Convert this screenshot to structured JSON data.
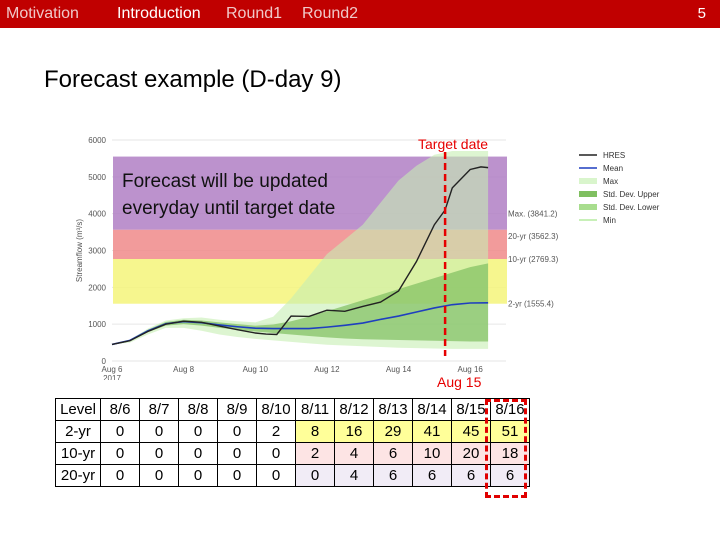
{
  "nav": {
    "items": [
      "Motivation",
      "Introduction",
      "Round1",
      "Round2"
    ],
    "active": "Introduction",
    "page_number": "5"
  },
  "slide_title": "Forecast example (D-day 9)",
  "overlay_text": {
    "line1": "Forecast will be updated",
    "line2": "everyday until target date"
  },
  "annotations": {
    "target_date": "Target date",
    "aug15": "Aug 15"
  },
  "colors": {
    "topbar": "#c00000",
    "hres": "#222222",
    "mean": "#1f3fbf",
    "max_band": "#c6efb3",
    "std_band": "#7fbf60",
    "purple_zone": "#b07fc4",
    "red_zone": "#f08a8a",
    "yellow_zone": "#f5f57a",
    "annotation": "#e60000"
  },
  "chart_data": {
    "type": "line",
    "ylabel": "Streamflow (m³/s)",
    "ylim": [
      0,
      6000
    ],
    "yticks": [
      "0",
      "1000",
      "2000",
      "3000",
      "4000",
      "5000",
      "6000"
    ],
    "xlim": [
      0,
      11
    ],
    "xticks": [
      {
        "x": 0,
        "label": "Aug 6",
        "sub": "2017"
      },
      {
        "x": 2,
        "label": "Aug 8"
      },
      {
        "x": 4,
        "label": "Aug 10"
      },
      {
        "x": 6,
        "label": "Aug 12"
      },
      {
        "x": 8,
        "label": "Aug 14"
      },
      {
        "x": 10,
        "label": "Aug 16"
      }
    ],
    "thresholds": [
      {
        "label": "Max. (3841.2)",
        "value": 3841.2
      },
      {
        "label": "20-yr (3562.3)",
        "value": 3562.3
      },
      {
        "label": "10-yr (2769.3)",
        "value": 2769.3
      },
      {
        "label": "2-yr (1555.4)",
        "value": 1555.4
      }
    ],
    "zones": [
      {
        "name": "purple",
        "from": 3562.3,
        "to": 5550
      },
      {
        "name": "red",
        "from": 2769.3,
        "to": 3562.3
      },
      {
        "name": "yellow",
        "from": 1555.4,
        "to": 2769.3
      }
    ],
    "target_x": 9.3,
    "series": [
      {
        "name": "HRES",
        "x": [
          0,
          0.5,
          1,
          1.5,
          2,
          2.5,
          3,
          3.5,
          4,
          4.3,
          4.6,
          5,
          5.5,
          6,
          6.5,
          7,
          7.5,
          8,
          8.5,
          9,
          9.3,
          9.5,
          10,
          10.3,
          10.5
        ],
        "y": [
          450,
          550,
          800,
          1000,
          1080,
          1050,
          950,
          850,
          760,
          730,
          720,
          1220,
          1210,
          1380,
          1350,
          1480,
          1600,
          1900,
          2700,
          3700,
          4100,
          4700,
          5200,
          5270,
          5250
        ]
      },
      {
        "name": "Mean",
        "x": [
          0,
          0.5,
          1,
          1.5,
          2,
          2.5,
          3,
          3.5,
          4,
          4.5,
          5,
          5.5,
          6,
          6.5,
          7,
          7.5,
          8,
          8.5,
          9,
          9.5,
          10,
          10.5
        ],
        "y": [
          450,
          560,
          820,
          1010,
          1070,
          1040,
          980,
          930,
          890,
          880,
          880,
          880,
          920,
          970,
          1030,
          1130,
          1220,
          1330,
          1440,
          1530,
          1575,
          1580
        ]
      },
      {
        "name": "Max",
        "x": [
          0,
          0.5,
          1,
          1.5,
          2,
          2.5,
          3,
          3.5,
          4,
          4.5,
          5,
          5.5,
          6,
          6.5,
          7,
          7.5,
          8,
          8.5,
          9,
          9.5,
          10,
          10.5
        ],
        "y_upper": [
          450,
          580,
          880,
          1100,
          1160,
          1180,
          1120,
          1080,
          1050,
          1200,
          1700,
          2300,
          2900,
          3300,
          3700,
          4300,
          4900,
          5300,
          5600,
          5700,
          5700,
          5700
        ],
        "y_lower": [
          450,
          500,
          720,
          900,
          900,
          820,
          720,
          650,
          600,
          560,
          520,
          480,
          440,
          420,
          400,
          380,
          360,
          350,
          340,
          330,
          330,
          330
        ]
      },
      {
        "name": "Std. Dev. Upper",
        "x": [
          0,
          0.5,
          1,
          1.5,
          2,
          2.5,
          3,
          3.5,
          4,
          4.5,
          5,
          5.5,
          6,
          6.5,
          7,
          7.5,
          8,
          8.5,
          9,
          9.5,
          10,
          10.5
        ],
        "y": [
          450,
          570,
          850,
          1060,
          1120,
          1100,
          1050,
          1000,
          960,
          990,
          1080,
          1200,
          1350,
          1500,
          1650,
          1800,
          1950,
          2100,
          2250,
          2400,
          2550,
          2650
        ]
      },
      {
        "name": "Std. Dev. Lower",
        "x": [
          0,
          0.5,
          1,
          1.5,
          2,
          2.5,
          3,
          3.5,
          4,
          4.5,
          5,
          5.5,
          6,
          6.5,
          7,
          7.5,
          8,
          8.5,
          9,
          9.5,
          10,
          10.5
        ],
        "y": [
          450,
          540,
          780,
          960,
          1000,
          960,
          900,
          850,
          800,
          760,
          720,
          680,
          640,
          610,
          590,
          580,
          570,
          560,
          550,
          540,
          530,
          530
        ]
      },
      {
        "name": "Min"
      }
    ],
    "legend": [
      "HRES",
      "Mean",
      "Max",
      "Std. Dev. Upper",
      "Std. Dev. Lower",
      "Min"
    ],
    "legend_position": "right"
  },
  "level_table": {
    "header": [
      "Level",
      "8/6",
      "8/7",
      "8/8",
      "8/9",
      "8/10",
      "8/11",
      "8/12",
      "8/13",
      "8/14",
      "8/15",
      "8/16"
    ],
    "rows": [
      {
        "label": "2-yr",
        "values": [
          "0",
          "0",
          "0",
          "0",
          "2",
          "8",
          "16",
          "29",
          "41",
          "45",
          "51"
        ]
      },
      {
        "label": "10-yr",
        "values": [
          "0",
          "0",
          "0",
          "0",
          "0",
          "2",
          "4",
          "6",
          "10",
          "20",
          "18"
        ]
      },
      {
        "label": "20-yr",
        "values": [
          "0",
          "0",
          "0",
          "0",
          "0",
          "0",
          "4",
          "6",
          "6",
          "6",
          "6"
        ]
      }
    ],
    "row_colors": [
      "#ffff99",
      "#fde4e4",
      "#f1ecf6"
    ]
  }
}
